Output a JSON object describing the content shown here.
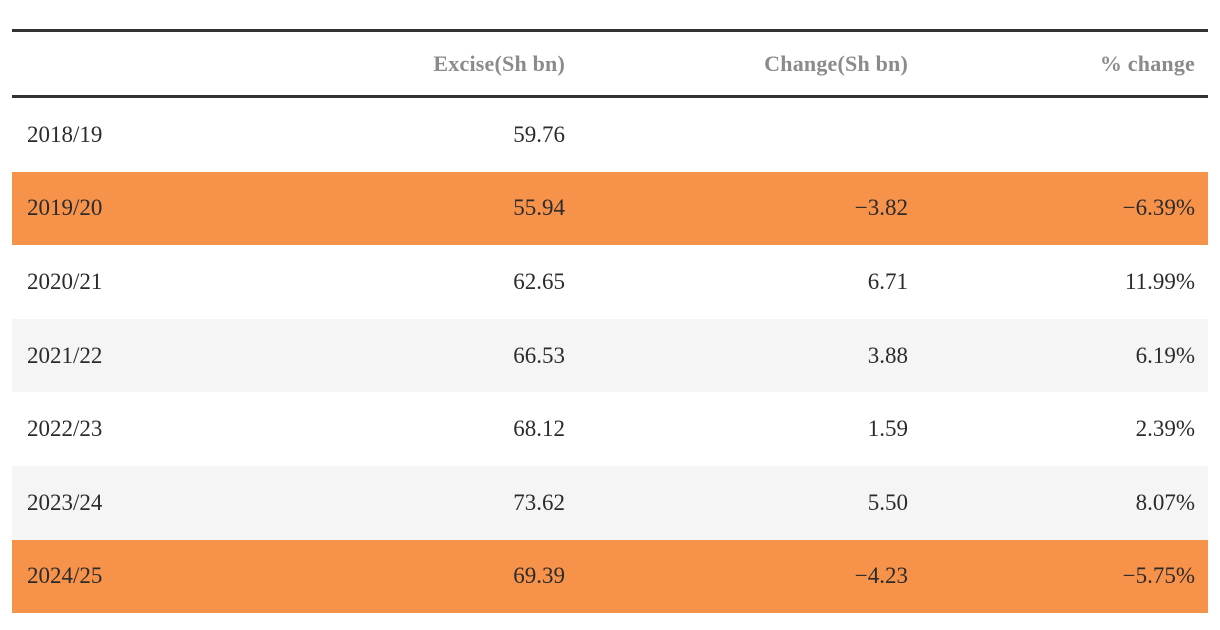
{
  "colors": {
    "highlight": "#F7924B",
    "stripe": "#F5F5F5",
    "border": "#333333",
    "header_text": "#8B8B8B",
    "text": "#2B2B2B",
    "background": "#FFFFFF"
  },
  "table": {
    "columns": [
      {
        "label": ""
      },
      {
        "label": "Excise(Sh bn)"
      },
      {
        "label": "Change(Sh bn)"
      },
      {
        "label": "% change"
      }
    ],
    "rows": [
      {
        "year": "2018/19",
        "excise": "59.76",
        "change": "",
        "pct_change": "",
        "style": "plain"
      },
      {
        "year": "2019/20",
        "excise": "55.94",
        "change": "−3.82",
        "pct_change": "−6.39%",
        "style": "highlight"
      },
      {
        "year": "2020/21",
        "excise": "62.65",
        "change": "6.71",
        "pct_change": "11.99%",
        "style": "plain"
      },
      {
        "year": "2021/22",
        "excise": "66.53",
        "change": "3.88",
        "pct_change": "6.19%",
        "style": "stripe"
      },
      {
        "year": "2022/23",
        "excise": "68.12",
        "change": "1.59",
        "pct_change": "2.39%",
        "style": "plain"
      },
      {
        "year": "2023/24",
        "excise": "73.62",
        "change": "5.50",
        "pct_change": "8.07%",
        "style": "stripe"
      },
      {
        "year": "2024/25",
        "excise": "69.39",
        "change": "−4.23",
        "pct_change": "−5.75%",
        "style": "highlight"
      }
    ]
  },
  "chart_data": {
    "type": "table",
    "columns": [
      "",
      "Excise(Sh bn)",
      "Change(Sh bn)",
      "% change"
    ],
    "rows": [
      [
        "2018/19",
        59.76,
        null,
        null
      ],
      [
        "2019/20",
        55.94,
        -3.82,
        -6.39
      ],
      [
        "2020/21",
        62.65,
        6.71,
        11.99
      ],
      [
        "2021/22",
        66.53,
        3.88,
        6.19
      ],
      [
        "2022/23",
        68.12,
        1.59,
        2.39
      ],
      [
        "2023/24",
        73.62,
        5.5,
        8.07
      ],
      [
        "2024/25",
        69.39,
        -4.23,
        -5.75
      ]
    ],
    "highlighted_rows": [
      "2019/20",
      "2024/25"
    ],
    "highlight_color": "#F7924B",
    "notes": "Negative-change fiscal years highlighted in orange; alternating light-gray striping on other rows"
  }
}
